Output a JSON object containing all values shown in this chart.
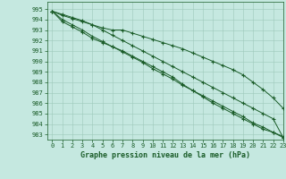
{
  "title": "Graphe pression niveau de la mer (hPa)",
  "background_color": "#c5e8e0",
  "plot_bg_color": "#c5e8e0",
  "grid_color": "#9dc8ba",
  "line_color": "#1a5c28",
  "marker_color": "#1a5c28",
  "xlim": [
    -0.5,
    23
  ],
  "ylim": [
    982.5,
    995.7
  ],
  "yticks": [
    983,
    984,
    985,
    986,
    987,
    988,
    989,
    990,
    991,
    992,
    993,
    994,
    995
  ],
  "xticks": [
    0,
    1,
    2,
    3,
    4,
    5,
    6,
    7,
    8,
    9,
    10,
    11,
    12,
    13,
    14,
    15,
    16,
    17,
    18,
    19,
    20,
    21,
    22,
    23
  ],
  "series": [
    [
      994.8,
      994.4,
      994.1,
      993.8,
      993.5,
      993.2,
      993.0,
      993.0,
      992.7,
      992.4,
      992.1,
      991.8,
      991.5,
      991.2,
      990.8,
      990.4,
      990.0,
      989.6,
      989.2,
      988.7,
      988.0,
      987.3,
      986.5,
      985.5
    ],
    [
      994.8,
      993.8,
      993.3,
      992.8,
      992.2,
      991.8,
      991.4,
      991.0,
      990.5,
      990.0,
      989.5,
      989.0,
      988.5,
      987.8,
      987.2,
      986.6,
      986.0,
      985.5,
      985.0,
      984.5,
      984.0,
      983.5,
      983.2,
      982.8
    ],
    [
      994.8,
      994.0,
      993.5,
      993.0,
      992.4,
      991.9,
      991.4,
      990.9,
      990.4,
      989.9,
      989.3,
      988.8,
      988.3,
      987.7,
      987.2,
      986.7,
      986.2,
      985.7,
      985.2,
      984.7,
      984.1,
      983.7,
      983.2,
      982.7
    ],
    [
      994.8,
      994.5,
      994.2,
      993.9,
      993.5,
      993.0,
      992.5,
      992.0,
      991.5,
      991.0,
      990.5,
      990.0,
      989.5,
      989.0,
      988.5,
      988.0,
      987.5,
      987.0,
      986.5,
      986.0,
      985.5,
      985.0,
      984.5,
      982.7
    ]
  ],
  "markers": [
    "4",
    "2",
    "1",
    "3"
  ],
  "ylabel_fontsize": 5.0,
  "xlabel_fontsize": 6.0,
  "tick_fontsize": 5.0
}
